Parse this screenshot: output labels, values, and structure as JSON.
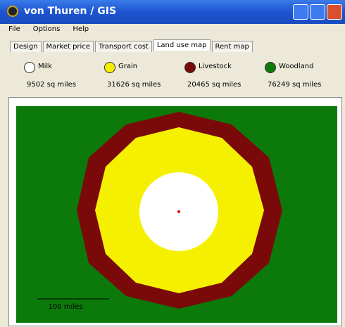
{
  "window": {
    "title": "von Thuren / GIS"
  },
  "menu": [
    "File",
    "Options",
    "Help"
  ],
  "tabs": [
    "Design",
    "Market price",
    "Transport cost",
    "Land use map",
    "Rent map"
  ],
  "legend": [
    {
      "label": "Milk",
      "area": "9502 sq miles"
    },
    {
      "label": "Grain",
      "area": "31626 sq miles"
    },
    {
      "label": "Livestock",
      "area": "20465 sq miles"
    },
    {
      "label": "Woodland",
      "area": "76249 sq miles"
    }
  ],
  "map": {
    "scale_label": "100 miles"
  }
}
